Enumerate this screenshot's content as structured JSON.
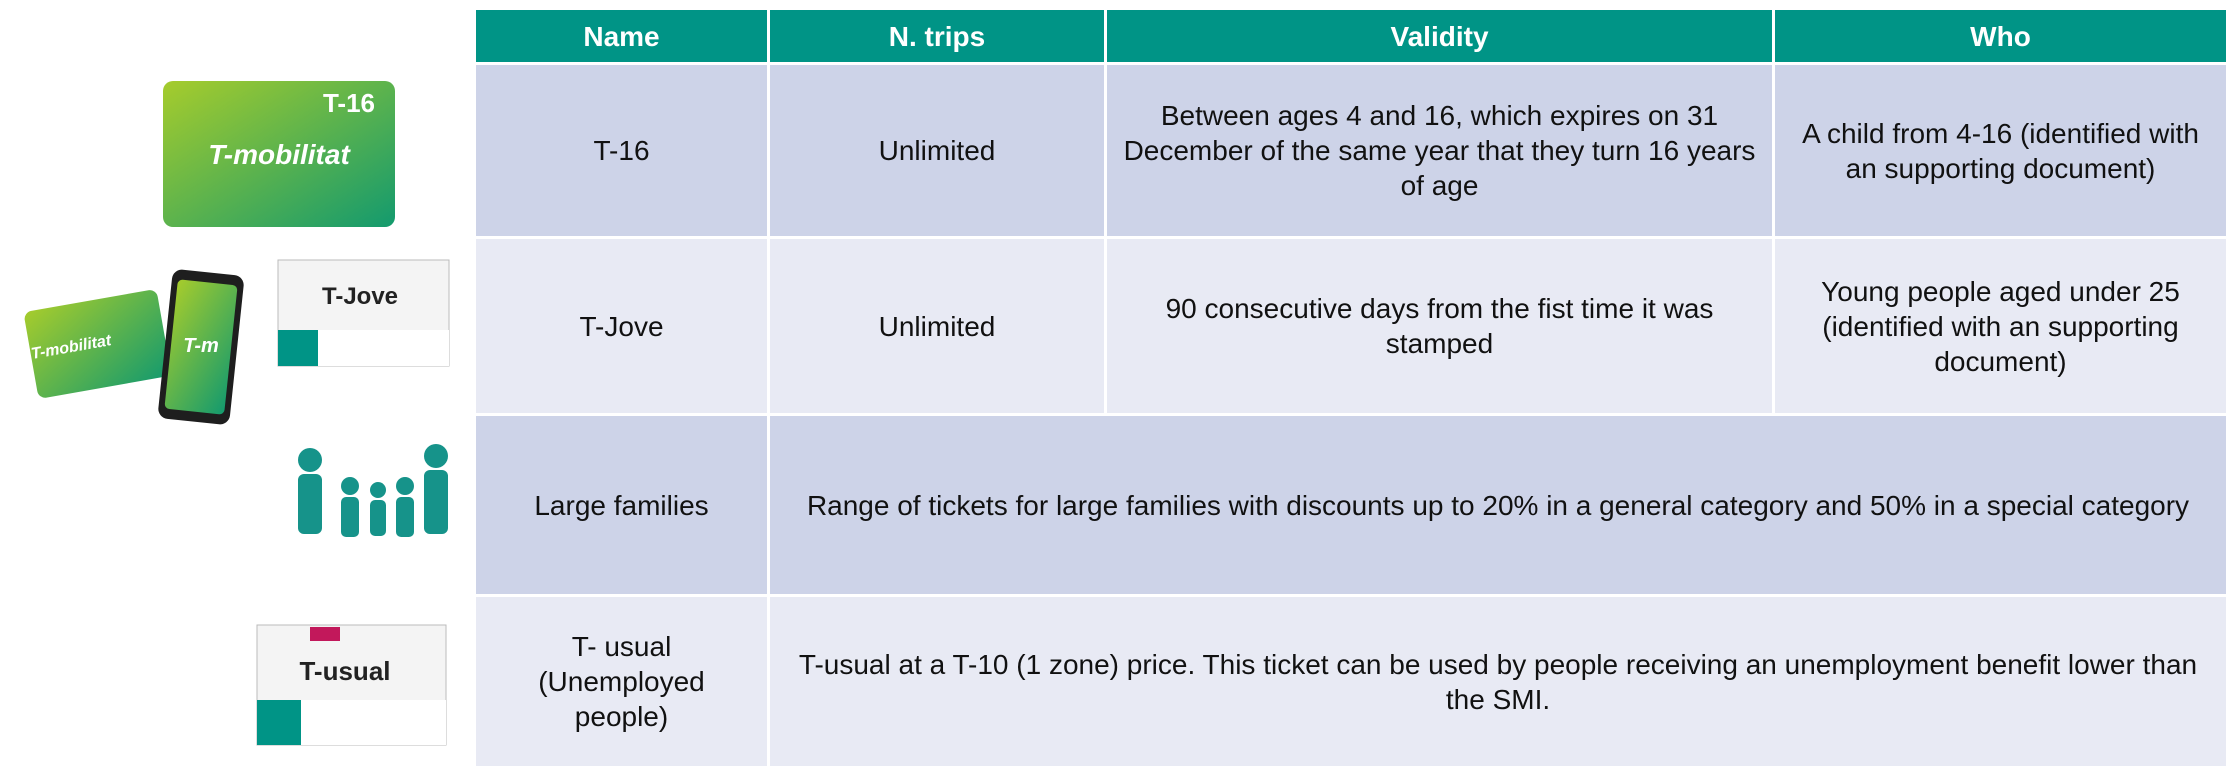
{
  "table": {
    "header": [
      "Name",
      "N. trips",
      "Validity",
      "Who"
    ],
    "rows": [
      [
        "T-16",
        "Unlimited",
        "Between ages 4 and 16, which expires on 31 December of the same year that they turn 16 years of age",
        "A child from 4-16 (identified with an supporting document)"
      ],
      [
        "T-Jove",
        "Unlimited",
        "90 consecutive days from the fist time it was stamped",
        "Young people aged under 25 (identified with an supporting document)"
      ],
      [
        "Large families",
        "Range of tickets for large families with discounts up to 20% in a general category and 50% in a special category"
      ],
      [
        "T- usual (Unemployed people)",
        "T-usual at a T-10 (1 zone) price. This ticket can be used by people receiving an unemployment benefit lower than the SMI."
      ]
    ]
  },
  "images": {
    "t16_card": [
      "T-16",
      "T-mobilitat"
    ],
    "mobile_cards": [
      "T-mobilitat",
      "T-m"
    ],
    "tjove_ticket": [
      "T-Jove"
    ],
    "tusual_ticket": [
      "T-usual"
    ]
  }
}
